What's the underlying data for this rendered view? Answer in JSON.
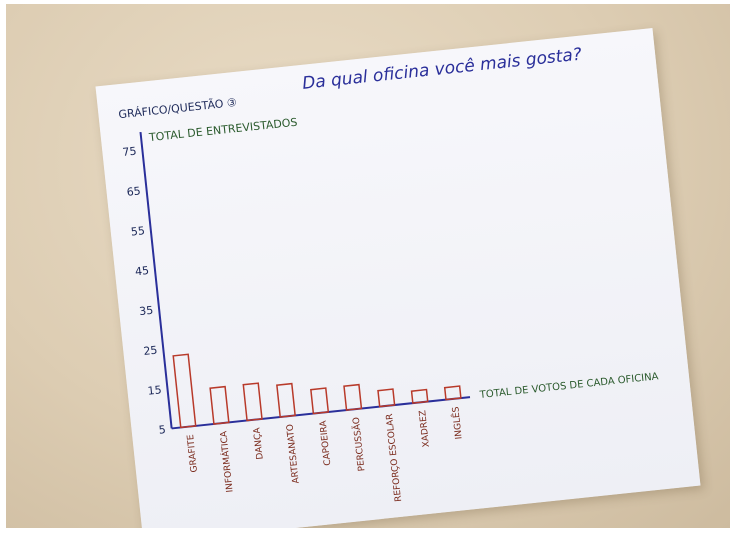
{
  "chart_data": {
    "type": "bar",
    "question_label": "GRÁFICO/QUESTÃO ③",
    "title": "Da qual oficina você mais gosta?",
    "ylabel": "TOTAL DE ENTREVISTADOS",
    "xlabel": "TOTAL DE VOTOS DE CADA OFICINA",
    "yticks": [
      "5",
      "15",
      "25",
      "35",
      "45",
      "55",
      "65",
      "75"
    ],
    "ylim": [
      5,
      75
    ],
    "categories": [
      "GRAFITE",
      "INFORMÁTICA",
      "DANÇA",
      "ARTESANATO",
      "CAPOEIRA",
      "PERCUSSÃO",
      "REFORÇO ESCOLAR",
      "XADREZ",
      "INGLÊS"
    ],
    "values": [
      23,
      14,
      14,
      13,
      11,
      11,
      9,
      8,
      8
    ],
    "bar_color": "#b83a2a",
    "grid": false
  }
}
